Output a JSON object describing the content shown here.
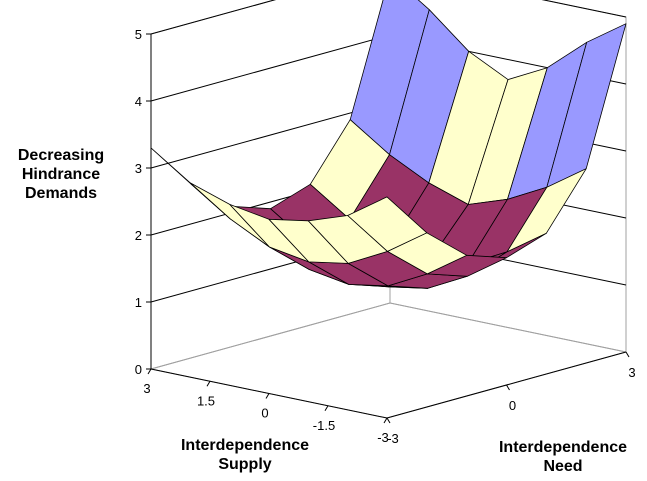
{
  "chart_data": {
    "type": "surface",
    "z_axis_title": [
      "Decreasing",
      "Hindrance",
      "Demands"
    ],
    "x_axis_title": [
      "Interdependence",
      "Supply"
    ],
    "y_axis_title": [
      "Interdependence",
      "Need"
    ],
    "z_ticks": [
      "0",
      "1",
      "2",
      "3",
      "4",
      "5"
    ],
    "x_ticks": [
      "3",
      "1.5",
      "0",
      "-1.5",
      "-3"
    ],
    "y_ticks": [
      "-3",
      "0",
      "3"
    ],
    "zlim": [
      0,
      5
    ],
    "x_range": [
      -3,
      3
    ],
    "y_range": [
      -3,
      3
    ],
    "grid": true,
    "color_bands": [
      {
        "range": [
          0,
          2
        ],
        "color": "#993366"
      },
      {
        "range": [
          2,
          3
        ],
        "color": "#ffffcc"
      },
      {
        "range": [
          3,
          4
        ],
        "color": "#9999ff"
      },
      {
        "range": [
          4,
          5
        ],
        "color": "#9999ff"
      }
    ],
    "series": [
      {
        "x": -3,
        "z": [
          3.3,
          2.6,
          2.1,
          1.9,
          2.1,
          2.9,
          4.9
        ]
      },
      {
        "x": -2,
        "z": [
          2.9,
          2.2,
          1.7,
          1.5,
          1.7,
          2.5,
          4.5
        ]
      },
      {
        "x": -1,
        "z": [
          2.7,
          1.9,
          1.4,
          1.2,
          1.4,
          2.2,
          4.0
        ]
      },
      {
        "x": 0,
        "z": [
          2.6,
          1.8,
          1.3,
          1.1,
          1.3,
          2.0,
          3.7
        ]
      },
      {
        "x": 1,
        "z": [
          2.7,
          1.9,
          1.4,
          1.2,
          1.4,
          2.2,
          4.0
        ]
      },
      {
        "x": 2,
        "z": [
          2.9,
          2.2,
          1.7,
          1.5,
          1.7,
          2.5,
          4.5
        ]
      },
      {
        "x": 3,
        "z": [
          3.3,
          2.6,
          2.1,
          1.9,
          2.1,
          2.9,
          4.9
        ]
      }
    ],
    "y_values": [
      -3,
      -2,
      -1,
      0,
      1,
      2,
      3
    ]
  }
}
